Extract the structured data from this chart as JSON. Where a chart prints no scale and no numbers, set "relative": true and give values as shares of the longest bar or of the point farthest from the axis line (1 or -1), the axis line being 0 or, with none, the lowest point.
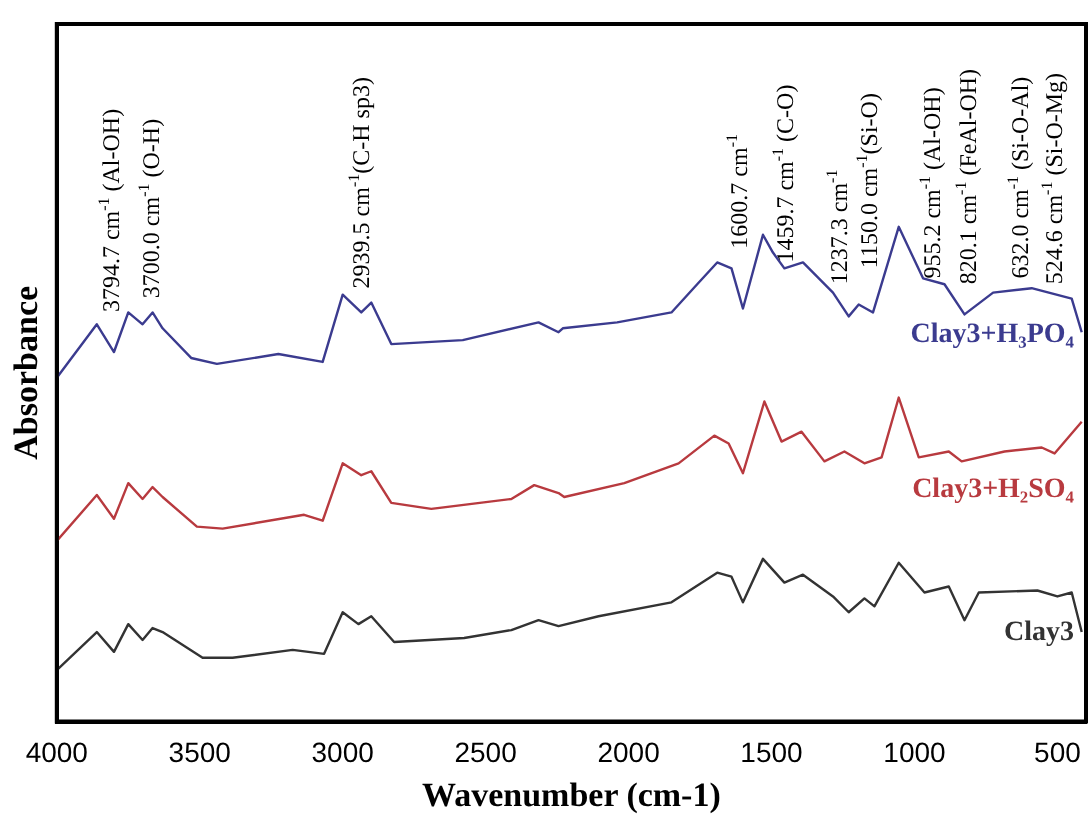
{
  "chart_data": {
    "type": "line",
    "xlabel": "Wavenumber (cm-1)",
    "ylabel": "Absorbance",
    "relative": true,
    "xlim": [
      4000,
      400
    ],
    "xticks": [
      4000,
      3500,
      3000,
      2500,
      2000,
      1500,
      1000,
      500
    ],
    "grid": false,
    "legend": false,
    "marker": "none",
    "line_style": "solid",
    "series": [
      {
        "name": "Clay3+H₃PO₄",
        "color": "#3b3b8f",
        "x": [
          4000,
          3860,
          3800,
          3750,
          3700,
          3665,
          3630,
          3530,
          3440,
          3225,
          3070,
          3000,
          2935,
          2900,
          2830,
          2580,
          2315,
          2245,
          2230,
          2040,
          1850,
          1760,
          1690,
          1640,
          1600,
          1530,
          1495,
          1455,
          1390,
          1285,
          1230,
          1195,
          1145,
          1055,
          970,
          895,
          825,
          725,
          590,
          450,
          415
        ],
        "values": [
          0.695,
          0.803,
          0.747,
          0.827,
          0.803,
          0.827,
          0.795,
          0.735,
          0.723,
          0.743,
          0.727,
          0.863,
          0.827,
          0.847,
          0.763,
          0.771,
          0.807,
          0.787,
          0.795,
          0.807,
          0.827,
          0.884,
          0.928,
          0.916,
          0.835,
          0.984,
          0.948,
          0.916,
          0.928,
          0.867,
          0.819,
          0.843,
          0.827,
          1,
          0.896,
          0.884,
          0.823,
          0.867,
          0.876,
          0.855,
          0.787
        ]
      },
      {
        "name": "Clay3+H₂SO₄",
        "color": "#b83a3f",
        "x": [
          4000,
          3860,
          3800,
          3750,
          3700,
          3665,
          3630,
          3510,
          3420,
          3135,
          3070,
          3000,
          2935,
          2900,
          2830,
          2690,
          2410,
          2330,
          2245,
          2225,
          2015,
          1825,
          1700,
          1650,
          1600,
          1525,
          1465,
          1395,
          1315,
          1245,
          1175,
          1115,
          1055,
          985,
          880,
          835,
          685,
          555,
          510,
          415
        ],
        "values": [
          0.365,
          0.458,
          0.41,
          0.482,
          0.45,
          0.474,
          0.454,
          0.394,
          0.39,
          0.418,
          0.406,
          0.522,
          0.498,
          0.506,
          0.442,
          0.43,
          0.45,
          0.478,
          0.462,
          0.454,
          0.482,
          0.522,
          0.578,
          0.562,
          0.502,
          0.647,
          0.566,
          0.586,
          0.526,
          0.546,
          0.522,
          0.534,
          0.655,
          0.534,
          0.546,
          0.526,
          0.546,
          0.554,
          0.542,
          0.606
        ]
      },
      {
        "name": "Clay3",
        "color": "#333333",
        "x": [
          4000,
          3860,
          3800,
          3750,
          3700,
          3665,
          3630,
          3490,
          3385,
          3175,
          3065,
          3000,
          2945,
          2900,
          2820,
          2575,
          2410,
          2315,
          2245,
          2105,
          1850,
          1690,
          1640,
          1600,
          1530,
          1455,
          1390,
          1285,
          1230,
          1175,
          1140,
          1055,
          965,
          880,
          825,
          775,
          570,
          500,
          450,
          415
        ],
        "values": [
          0.104,
          0.181,
          0.141,
          0.197,
          0.165,
          0.189,
          0.181,
          0.129,
          0.129,
          0.145,
          0.137,
          0.221,
          0.197,
          0.213,
          0.161,
          0.169,
          0.185,
          0.205,
          0.193,
          0.213,
          0.241,
          0.301,
          0.293,
          0.241,
          0.329,
          0.281,
          0.297,
          0.253,
          0.221,
          0.249,
          0.233,
          0.321,
          0.261,
          0.273,
          0.205,
          0.261,
          0.265,
          0.253,
          0.261,
          0.181
        ]
      }
    ],
    "annotations": [
      "3794.7 cm$^{-1}$ (Al-OH)",
      "3700.0 cm$^{-1}$ (O-H)",
      "2939.5 cm$^{-1}$(C-H sp3)",
      "1600.7 cm$^{-1}$",
      "1459.7 cm$^{-1}$ (C-O)",
      "1237.3 cm$^{-1}$",
      "1150.0 cm$^{-1}$(Si-O)",
      "955.2 cm$^{-1}$ (Al-OH)",
      "820.1 cm$^{-1}$ (FeAl-OH)",
      "632.0 cm$^{-1}$ (Si-O-Al)",
      "524.6 cm$^{-1}$ (Si-O-Mg)"
    ]
  }
}
